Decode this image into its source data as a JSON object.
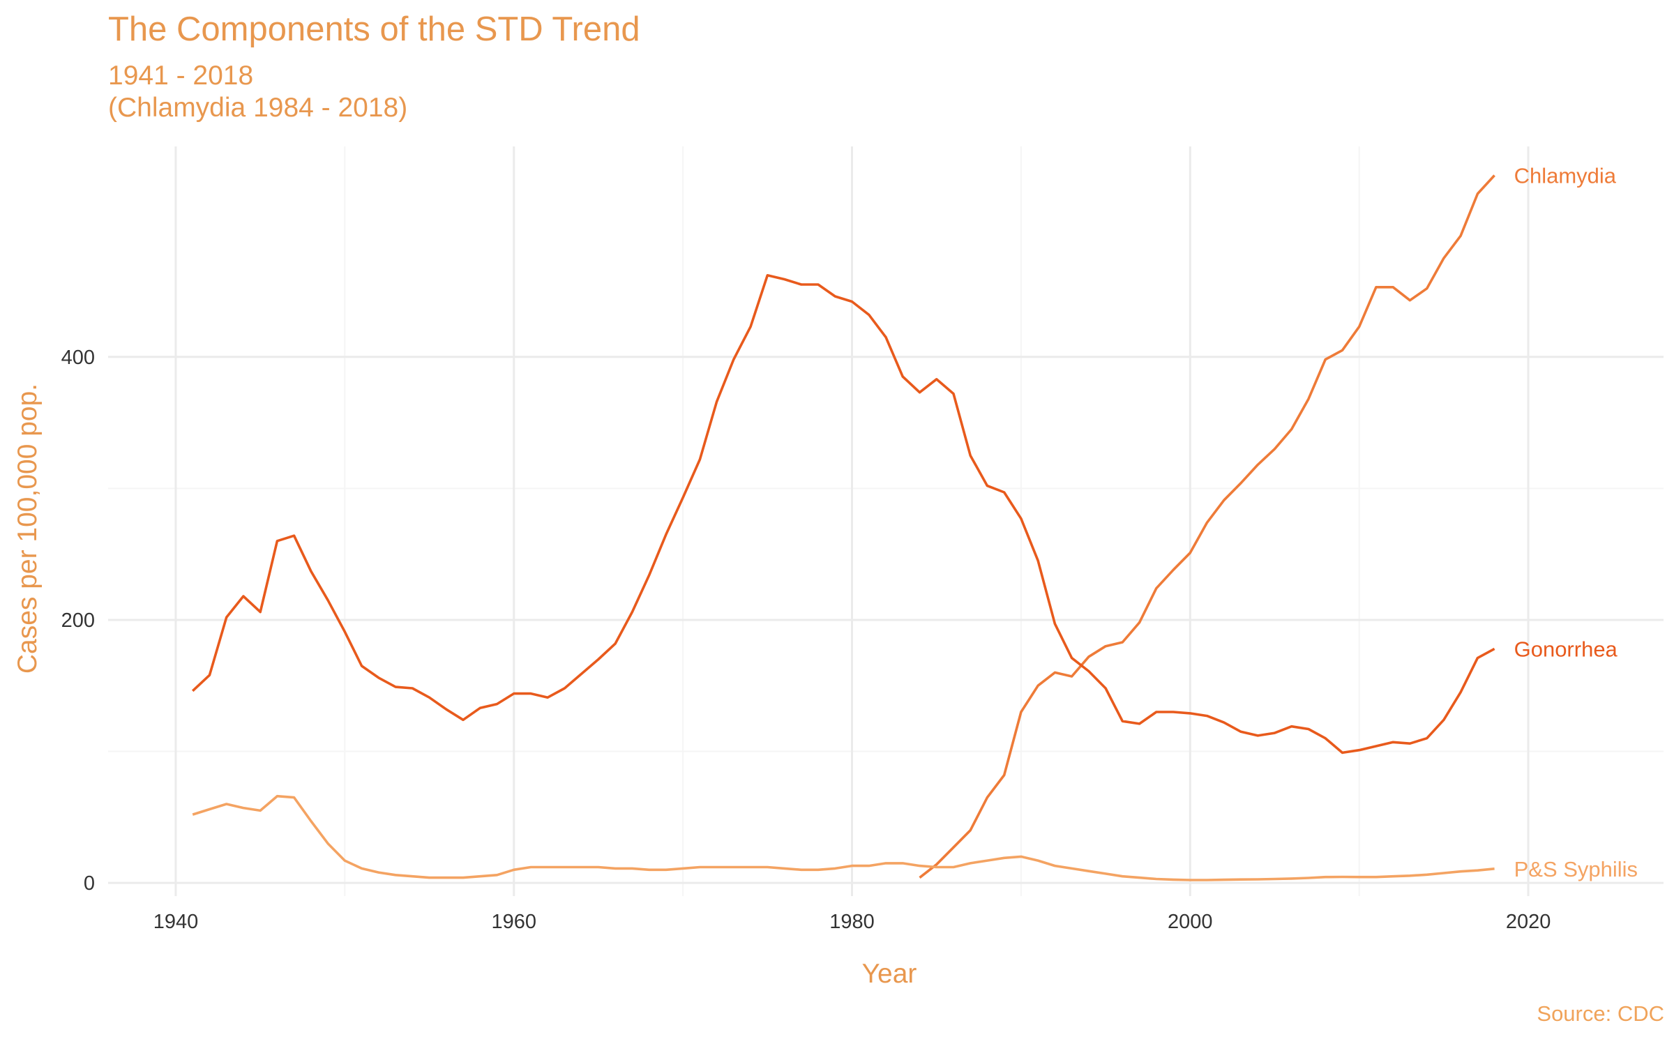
{
  "chart_data": {
    "type": "line",
    "title": "The Components of the STD Trend",
    "subtitle": "1941 - 2018\n(Chlamydia 1984 - 2018)",
    "xlabel": "Year",
    "ylabel": "Cases per 100,000 pop.",
    "caption": "Source: CDC",
    "xlim": [
      1936,
      2028
    ],
    "ylim": [
      -10,
      560
    ],
    "x_ticks": [
      1940,
      1960,
      1980,
      2000,
      2020
    ],
    "y_ticks": [
      0,
      200,
      400
    ],
    "grid": true,
    "legend": "direct labels at line ends",
    "series": [
      {
        "name": "Chlamydia",
        "color": "#ee7b38",
        "x": [
          1984,
          1985,
          1986,
          1987,
          1988,
          1989,
          1990,
          1991,
          1992,
          1993,
          1994,
          1995,
          1996,
          1997,
          1998,
          1999,
          2000,
          2001,
          2002,
          2003,
          2004,
          2005,
          2006,
          2007,
          2008,
          2009,
          2010,
          2011,
          2012,
          2013,
          2014,
          2015,
          2016,
          2017,
          2018
        ],
        "y": [
          4,
          14,
          27,
          40,
          65,
          82,
          130,
          150,
          160,
          157,
          172,
          180,
          183,
          198,
          224,
          238,
          251,
          274,
          291,
          304,
          318,
          330,
          345,
          368,
          398,
          405,
          423,
          453,
          453,
          443,
          452,
          475,
          492,
          524,
          538
        ]
      },
      {
        "name": "Gonorrhea",
        "color": "#e85a1c",
        "x": [
          1941,
          1942,
          1943,
          1944,
          1945,
          1946,
          1947,
          1948,
          1949,
          1950,
          1951,
          1952,
          1953,
          1954,
          1955,
          1956,
          1957,
          1958,
          1959,
          1960,
          1961,
          1962,
          1963,
          1964,
          1965,
          1966,
          1967,
          1968,
          1969,
          1970,
          1971,
          1972,
          1973,
          1974,
          1975,
          1976,
          1977,
          1978,
          1979,
          1980,
          1981,
          1982,
          1983,
          1984,
          1985,
          1986,
          1987,
          1988,
          1989,
          1990,
          1991,
          1992,
          1993,
          1994,
          1995,
          1996,
          1997,
          1998,
          1999,
          2000,
          2001,
          2002,
          2003,
          2004,
          2005,
          2006,
          2007,
          2008,
          2009,
          2010,
          2011,
          2012,
          2013,
          2014,
          2015,
          2016,
          2017,
          2018
        ],
        "y": [
          146,
          158,
          202,
          218,
          206,
          260,
          264,
          237,
          215,
          191,
          165,
          156,
          149,
          148,
          141,
          132,
          124,
          133,
          136,
          144,
          144,
          141,
          148,
          159,
          170,
          182,
          206,
          234,
          265,
          293,
          322,
          366,
          398,
          423,
          462,
          459,
          455,
          455,
          446,
          442,
          432,
          415,
          385,
          373,
          383,
          372,
          325,
          302,
          297,
          277,
          245,
          197,
          171,
          161,
          148,
          123,
          121,
          130,
          130,
          129,
          127,
          122,
          115,
          112,
          114,
          119,
          117,
          110,
          99,
          101,
          104,
          107,
          106,
          110,
          124,
          145,
          171,
          178
        ]
      },
      {
        "name": "P&S Syphilis",
        "color": "#f4a362",
        "x": [
          1941,
          1942,
          1943,
          1944,
          1945,
          1946,
          1947,
          1948,
          1949,
          1950,
          1951,
          1952,
          1953,
          1954,
          1955,
          1956,
          1957,
          1958,
          1959,
          1960,
          1961,
          1962,
          1963,
          1964,
          1965,
          1966,
          1967,
          1968,
          1969,
          1970,
          1971,
          1972,
          1973,
          1974,
          1975,
          1976,
          1977,
          1978,
          1979,
          1980,
          1981,
          1982,
          1983,
          1984,
          1985,
          1986,
          1987,
          1988,
          1989,
          1990,
          1991,
          1992,
          1993,
          1994,
          1995,
          1996,
          1997,
          1998,
          1999,
          2000,
          2001,
          2002,
          2003,
          2004,
          2005,
          2006,
          2007,
          2008,
          2009,
          2010,
          2011,
          2012,
          2013,
          2014,
          2015,
          2016,
          2017,
          2018
        ],
        "y": [
          52,
          56,
          60,
          57,
          55,
          66,
          65,
          47,
          30,
          17,
          11,
          8,
          6,
          5,
          4,
          4,
          4,
          5,
          6,
          10,
          12,
          12,
          12,
          12,
          12,
          11,
          11,
          10,
          10,
          11,
          12,
          12,
          12,
          12,
          12,
          11,
          10,
          10,
          11,
          13,
          13,
          15,
          15,
          13,
          12,
          12,
          15,
          17,
          19,
          20,
          17,
          13,
          11,
          9,
          7,
          5,
          4,
          3,
          2.5,
          2.2,
          2.2,
          2.4,
          2.6,
          2.7,
          3,
          3.3,
          3.8,
          4.5,
          4.6,
          4.5,
          4.5,
          5,
          5.5,
          6.3,
          7.5,
          8.7,
          9.5,
          10.8
        ]
      }
    ]
  }
}
